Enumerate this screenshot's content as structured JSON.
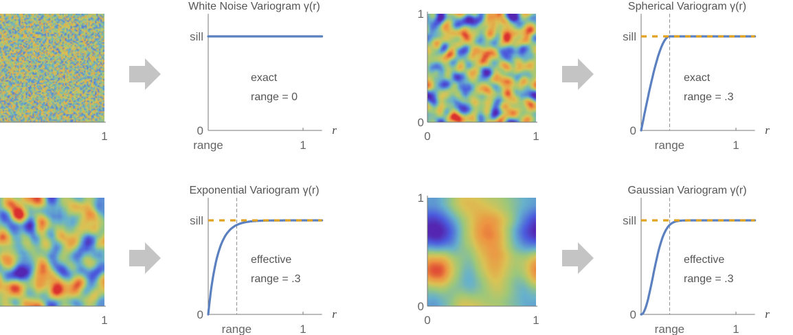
{
  "colors": {
    "curve": "#5b80c0",
    "sill": "#e3a21e",
    "axis": "#777777",
    "arrow": "#c4c4c4"
  },
  "fields": [
    {
      "name": "white-noise-field",
      "smooth": 0,
      "x_ticks": [
        "1"
      ],
      "y_ticks": []
    },
    {
      "name": "spherical-field",
      "smooth": 2,
      "x_ticks": [
        "0",
        "1"
      ],
      "y_ticks": [
        "0",
        "1"
      ]
    },
    {
      "name": "exponential-field",
      "smooth": 3,
      "x_ticks": [
        "1"
      ],
      "y_ticks": []
    },
    {
      "name": "gaussian-field",
      "smooth": 9,
      "x_ticks": [
        "0",
        "1"
      ],
      "y_ticks": [
        "0",
        "1"
      ]
    }
  ],
  "arrows": [
    {
      "icon": "right-arrow-icon"
    },
    {
      "icon": "right-arrow-icon"
    },
    {
      "icon": "right-arrow-icon"
    },
    {
      "icon": "right-arrow-icon"
    }
  ],
  "chart_data": [
    {
      "type": "line",
      "title": "White Noise Variogram γ(r)",
      "model": "nugget",
      "sill": 1,
      "range": 0,
      "xlim": [
        0,
        1.2
      ],
      "ylim": [
        0,
        1.24
      ],
      "xlabel": "r",
      "x_tick_labels": [
        "range",
        "1"
      ],
      "y_tick_labels": [
        "0",
        "sill"
      ],
      "annotation": [
        "exact",
        "range = 0"
      ],
      "show_sill_line": false
    },
    {
      "type": "line",
      "title": "Spherical Variogram γ(r)",
      "model": "spherical",
      "sill": 1,
      "range": 0.3,
      "xlim": [
        0,
        1.2
      ],
      "ylim": [
        0,
        1.24
      ],
      "xlabel": "r",
      "x_tick_labels": [
        "range",
        "1"
      ],
      "y_tick_labels": [
        "0",
        "sill"
      ],
      "annotation": [
        "exact",
        "range = .3"
      ],
      "show_sill_line": true
    },
    {
      "type": "line",
      "title": "Exponential Variogram γ(r)",
      "model": "exponential",
      "sill": 1,
      "range": 0.3,
      "xlim": [
        0,
        1.2
      ],
      "ylim": [
        0,
        1.24
      ],
      "xlabel": "r",
      "x_tick_labels": [
        "range",
        "1"
      ],
      "y_tick_labels": [
        "0",
        "sill"
      ],
      "annotation": [
        "effective",
        "range = .3"
      ],
      "show_sill_line": true
    },
    {
      "type": "line",
      "title": "Gaussian Variogram γ(r)",
      "model": "gaussian",
      "sill": 1,
      "range": 0.3,
      "xlim": [
        0,
        1.2
      ],
      "ylim": [
        0,
        1.24
      ],
      "xlabel": "r",
      "x_tick_labels": [
        "range",
        "1"
      ],
      "y_tick_labels": [
        "0",
        "sill"
      ],
      "annotation": [
        "effective",
        "range = .3"
      ],
      "show_sill_line": true
    }
  ]
}
